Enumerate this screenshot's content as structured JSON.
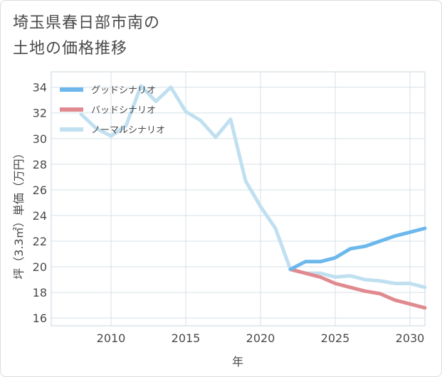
{
  "title_lines": [
    "埼玉県春日部市南の",
    "土地の価格推移"
  ],
  "chart_data": {
    "type": "line",
    "title": "埼玉県春日部市南の土地の価格推移",
    "xlabel": "年",
    "ylabel": "坪（3.3㎡）単価（万円）",
    "xlim": [
      2006,
      2031
    ],
    "ylim": [
      15.4,
      35.2
    ],
    "xticks": [
      2010,
      2015,
      2020,
      2025,
      2030
    ],
    "yticks": [
      16,
      18,
      20,
      22,
      24,
      26,
      28,
      30,
      32,
      34
    ],
    "grid": true,
    "legend_position": "top-left",
    "series": [
      {
        "name": "グッドシナリオ",
        "color": "#6cb8ec",
        "x": [
          2022,
          2023,
          2024,
          2025,
          2026,
          2027,
          2028,
          2029,
          2030,
          2031
        ],
        "y": [
          19.8,
          20.4,
          20.4,
          20.7,
          21.4,
          21.6,
          22.0,
          22.4,
          22.7,
          23.0
        ]
      },
      {
        "name": "バッドシナリオ",
        "color": "#e08a90",
        "x": [
          2022,
          2023,
          2024,
          2025,
          2026,
          2027,
          2028,
          2029,
          2030,
          2031
        ],
        "y": [
          19.8,
          19.5,
          19.2,
          18.7,
          18.4,
          18.1,
          17.9,
          17.4,
          17.1,
          16.8
        ]
      },
      {
        "name": "ノーマルシナリオ",
        "color": "#c0e0f0",
        "x": [
          2008,
          2009,
          2010,
          2011,
          2012,
          2013,
          2014,
          2015,
          2016,
          2017,
          2018,
          2019,
          2020,
          2021,
          2022,
          2023,
          2024,
          2025,
          2026,
          2027,
          2028,
          2029,
          2030,
          2031
        ],
        "y": [
          31.9,
          30.8,
          30.2,
          31.0,
          34.1,
          32.9,
          34.0,
          32.1,
          31.4,
          30.1,
          31.5,
          26.7,
          24.7,
          23.0,
          19.8,
          19.5,
          19.5,
          19.2,
          19.3,
          19.0,
          18.9,
          18.7,
          18.7,
          18.4
        ]
      }
    ]
  }
}
